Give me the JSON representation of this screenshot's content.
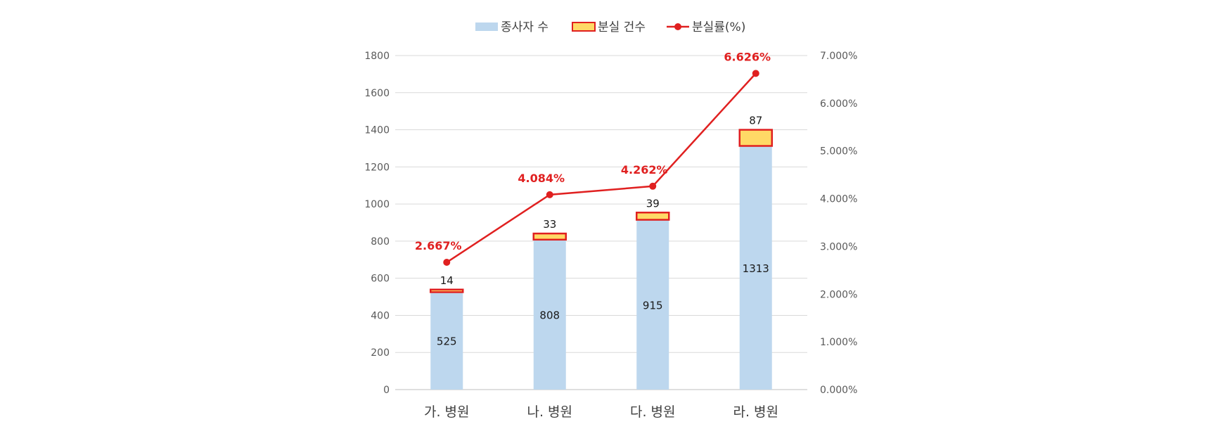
{
  "chart_data": {
    "type": "bar",
    "categories": [
      "가. 병원",
      "나. 병원",
      "다. 병원",
      "라. 병원"
    ],
    "series": [
      {
        "name": "종사자 수",
        "type": "bar",
        "stacked": true,
        "axis": "left",
        "color": "#bdd7ee",
        "values": [
          525,
          808,
          915,
          1313
        ]
      },
      {
        "name": "분실 건수",
        "type": "bar",
        "stacked": true,
        "axis": "left",
        "color": "#ffd966",
        "border": "#e02020",
        "values": [
          14,
          33,
          39,
          87
        ]
      },
      {
        "name": "분실률(%)",
        "type": "line",
        "axis": "right",
        "color": "#e02020",
        "values": [
          2.667,
          4.084,
          4.262,
          6.626
        ]
      }
    ],
    "rate_labels": [
      "2.667%",
      "4.084%",
      "4.262%",
      "6.626%"
    ],
    "y_left": {
      "min": 0,
      "max": 1800,
      "ticks": [
        "0",
        "200",
        "400",
        "600",
        "800",
        "1000",
        "1200",
        "1400",
        "1600",
        "1800"
      ]
    },
    "y_right": {
      "min": 0,
      "max": 7,
      "ticks": [
        "0.000%",
        "1.000%",
        "2.000%",
        "3.000%",
        "4.000%",
        "5.000%",
        "6.000%",
        "7.000%"
      ]
    },
    "grid": true,
    "legend": "top-center"
  }
}
